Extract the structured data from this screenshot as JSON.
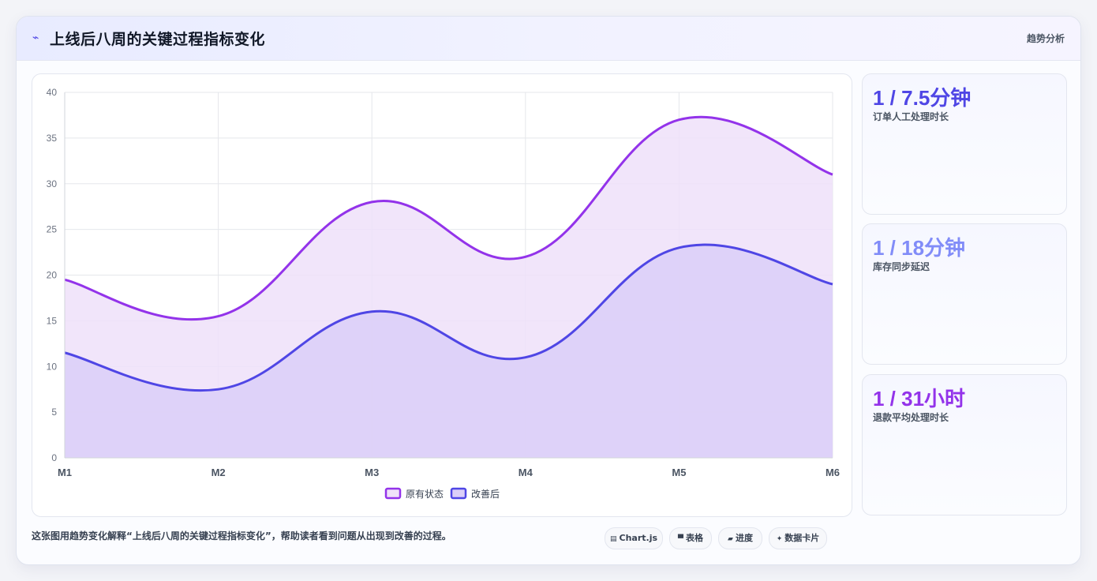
{
  "header": {
    "icon": "trend-line-icon",
    "title": "上线后八周的关键过程指标变化",
    "tag": "趋势分析"
  },
  "chart_data": {
    "type": "area",
    "categories": [
      "M1",
      "M2",
      "M3",
      "M4",
      "M5",
      "M6"
    ],
    "ylim": [
      0,
      40
    ],
    "yticks": [
      0,
      5,
      10,
      15,
      20,
      25,
      30,
      35,
      40
    ],
    "grid": true,
    "legend_position": "bottom",
    "series": [
      {
        "name": "原有状态",
        "values": [
          19.5,
          15.5,
          28,
          22,
          37,
          31
        ],
        "color": "#9333ea",
        "fill": "#efe1f9"
      },
      {
        "name": "改善后",
        "values": [
          11.5,
          7.5,
          16,
          11,
          23,
          19
        ],
        "color": "#4f46e5",
        "fill": "#dbcff8"
      }
    ]
  },
  "kpis": [
    {
      "value": "1 / 7.5分钟",
      "label": "订单人工处理时长",
      "color": "#4f46e5"
    },
    {
      "value": "1 / 18分钟",
      "label": "库存同步延迟",
      "color": "#818cf8"
    },
    {
      "value": "1 / 31小时",
      "label": "退款平均处理时长",
      "color": "#9333ea"
    }
  ],
  "caption": "这张图用趋势变化解释“上线后八周的关键过程指标变化”，帮助读者看到问题从出现到改善的过程。",
  "chips": [
    {
      "icon": "chart-icon",
      "label": "Chart.js"
    },
    {
      "icon": "table-icon",
      "label": "表格"
    },
    {
      "icon": "progress-icon",
      "label": "进度"
    },
    {
      "icon": "sparkle-icon",
      "label": "数据卡片"
    }
  ]
}
